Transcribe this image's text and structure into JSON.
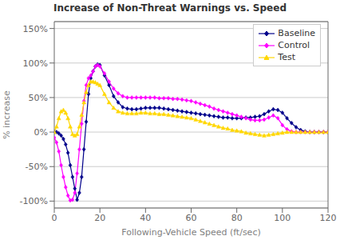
{
  "chart_data": {
    "type": "line",
    "title": "Increase of Non-Threat Warnings vs. Speed",
    "x_label": "Following-Vehicle Speed (ft/sec)",
    "y_label": "% increase",
    "x": [
      0,
      1,
      2,
      3,
      4,
      5,
      6,
      7,
      8,
      9,
      10,
      11,
      12,
      13,
      14,
      15,
      16,
      17,
      18,
      19,
      20,
      22,
      24,
      26,
      28,
      30,
      32,
      34,
      36,
      38,
      40,
      42,
      44,
      46,
      48,
      50,
      52,
      54,
      56,
      58,
      60,
      62,
      64,
      66,
      68,
      70,
      72,
      74,
      76,
      78,
      80,
      82,
      84,
      86,
      88,
      90,
      92,
      94,
      96,
      98,
      100,
      102,
      104,
      106,
      108,
      110,
      112,
      114,
      116,
      118,
      120
    ],
    "series": [
      {
        "name": "Baseline",
        "color": "#00008B",
        "marker": "diamond",
        "values": [
          0.0,
          0.0,
          -0.02,
          -0.05,
          -0.1,
          -0.18,
          -0.3,
          -0.48,
          -0.65,
          -0.82,
          -0.98,
          -0.88,
          -0.65,
          -0.25,
          0.15,
          0.55,
          0.78,
          0.88,
          0.95,
          0.98,
          0.97,
          0.82,
          0.68,
          0.52,
          0.43,
          0.36,
          0.34,
          0.33,
          0.33,
          0.34,
          0.35,
          0.35,
          0.35,
          0.35,
          0.34,
          0.33,
          0.32,
          0.31,
          0.3,
          0.29,
          0.28,
          0.27,
          0.26,
          0.25,
          0.24,
          0.23,
          0.22,
          0.21,
          0.21,
          0.2,
          0.2,
          0.2,
          0.21,
          0.21,
          0.22,
          0.23,
          0.26,
          0.3,
          0.33,
          0.32,
          0.28,
          0.2,
          0.13,
          0.07,
          0.03,
          0.01,
          0.0,
          0.0,
          0.0,
          0.0,
          0.0
        ]
      },
      {
        "name": "Control",
        "color": "#FF00FF",
        "marker": "diamond",
        "values": [
          -0.08,
          -0.15,
          -0.28,
          -0.48,
          -0.65,
          -0.8,
          -0.92,
          -0.99,
          -0.98,
          -0.88,
          -0.6,
          -0.25,
          0.12,
          0.45,
          0.68,
          0.78,
          0.82,
          0.88,
          0.95,
          0.97,
          0.95,
          0.85,
          0.73,
          0.63,
          0.56,
          0.52,
          0.5,
          0.5,
          0.5,
          0.5,
          0.5,
          0.5,
          0.5,
          0.49,
          0.49,
          0.49,
          0.48,
          0.48,
          0.47,
          0.46,
          0.45,
          0.43,
          0.41,
          0.39,
          0.37,
          0.34,
          0.32,
          0.3,
          0.28,
          0.26,
          0.24,
          0.22,
          0.2,
          0.18,
          0.17,
          0.17,
          0.18,
          0.21,
          0.24,
          0.2,
          0.1,
          0.04,
          0.01,
          0.0,
          0.0,
          0.0,
          0.0,
          0.0,
          0.0,
          0.0,
          0.0
        ]
      },
      {
        "name": "Test",
        "color": "#FFD700",
        "marker": "triangle",
        "values": [
          0.0,
          0.08,
          0.2,
          0.3,
          0.32,
          0.28,
          0.2,
          0.08,
          -0.03,
          -0.05,
          -0.03,
          0.08,
          0.25,
          0.43,
          0.58,
          0.68,
          0.73,
          0.73,
          0.72,
          0.7,
          0.68,
          0.55,
          0.43,
          0.35,
          0.3,
          0.28,
          0.27,
          0.27,
          0.27,
          0.28,
          0.28,
          0.27,
          0.27,
          0.26,
          0.26,
          0.25,
          0.24,
          0.23,
          0.22,
          0.21,
          0.2,
          0.18,
          0.16,
          0.14,
          0.12,
          0.1,
          0.08,
          0.06,
          0.05,
          0.03,
          0.02,
          0.01,
          -0.01,
          -0.02,
          -0.03,
          -0.04,
          -0.05,
          -0.04,
          -0.03,
          -0.02,
          -0.01,
          0.0,
          0.0,
          0.0,
          0.0,
          0.0,
          0.0,
          0.0,
          0.0,
          0.0,
          0.0
        ]
      }
    ],
    "xlim": [
      0,
      120
    ],
    "xticks": [
      0,
      20,
      40,
      60,
      80,
      100,
      120
    ],
    "ylim": [
      -1.1,
      1.6
    ],
    "yticks": [
      {
        "value": -1.0,
        "label": "-100%"
      },
      {
        "value": -0.5,
        "label": "-50%"
      },
      {
        "value": 0.0,
        "label": "0%"
      },
      {
        "value": 0.5,
        "label": "50%"
      },
      {
        "value": 1.0,
        "label": "100%"
      },
      {
        "value": 1.5,
        "label": "150%"
      }
    ],
    "grid": "y",
    "legend": "upper right"
  }
}
